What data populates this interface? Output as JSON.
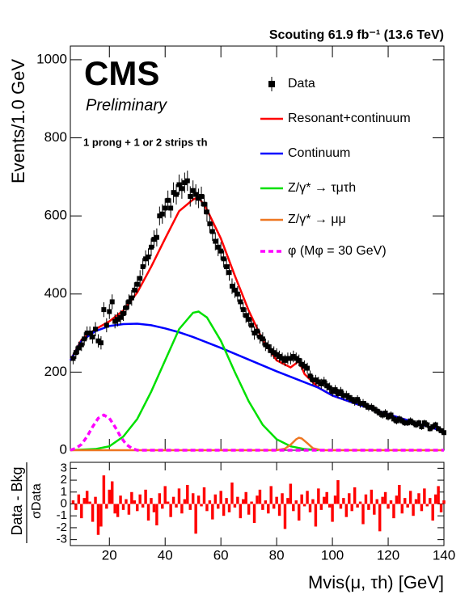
{
  "chart_data": {
    "type": "scatter",
    "header": "Scouting 61.9 fb⁻¹ (13.6 TeV)",
    "experiment": "CMS",
    "status": "Preliminary",
    "annotation": "1 prong + 1 or 2 strips τh",
    "xlabel": "Mvis(μ, τh) [GeV]",
    "ylabel": "Events/1.0 GeV",
    "xlim": [
      6,
      140
    ],
    "ylim": [
      0,
      1035
    ],
    "xticks": [
      20,
      40,
      60,
      80,
      100,
      120,
      140
    ],
    "yticks": [
      0,
      200,
      400,
      600,
      800,
      1000
    ],
    "series": [
      {
        "name": "Data",
        "style": "points",
        "color": "#000000",
        "x": [
          7,
          8,
          9,
          10,
          11,
          12,
          13,
          14,
          15,
          16,
          17,
          18,
          19,
          20,
          21,
          22,
          23,
          24,
          25,
          26,
          27,
          28,
          29,
          30,
          31,
          32,
          33,
          34,
          35,
          36,
          37,
          38,
          39,
          40,
          41,
          42,
          43,
          44,
          45,
          46,
          47,
          48,
          49,
          50,
          51,
          52,
          53,
          54,
          55,
          56,
          57,
          58,
          59,
          60,
          61,
          62,
          63,
          64,
          65,
          66,
          67,
          68,
          69,
          70,
          71,
          72,
          73,
          74,
          75,
          76,
          77,
          78,
          79,
          80,
          81,
          82,
          83,
          84,
          85,
          86,
          87,
          88,
          89,
          90,
          91,
          92,
          93,
          94,
          95,
          96,
          97,
          98,
          99,
          100,
          101,
          102,
          103,
          104,
          105,
          106,
          107,
          108,
          109,
          110,
          111,
          112,
          113,
          114,
          115,
          116,
          117,
          118,
          119,
          120,
          121,
          122,
          123,
          124,
          125,
          126,
          127,
          128,
          129,
          130,
          131,
          132,
          133,
          134,
          135,
          136,
          137,
          138,
          139,
          140
        ],
        "values": [
          235,
          250,
          262,
          270,
          285,
          300,
          300,
          290,
          310,
          280,
          275,
          360,
          320,
          355,
          380,
          330,
          335,
          340,
          350,
          365,
          380,
          390,
          410,
          425,
          440,
          470,
          490,
          495,
          520,
          540,
          545,
          600,
          605,
          620,
          640,
          620,
          660,
          655,
          680,
          670,
          685,
          690,
          650,
          665,
          655,
          645,
          650,
          630,
          610,
          580,
          560,
          535,
          520,
          510,
          490,
          470,
          455,
          420,
          410,
          400,
          380,
          360,
          345,
          335,
          320,
          300,
          305,
          290,
          285,
          270,
          265,
          255,
          250,
          245,
          240,
          235,
          230,
          235,
          235,
          240,
          235,
          230,
          220,
          215,
          210,
          190,
          180,
          180,
          175,
          170,
          175,
          165,
          160,
          150,
          155,
          145,
          150,
          140,
          140,
          135,
          130,
          125,
          130,
          120,
          120,
          115,
          110,
          110,
          105,
          100,
          95,
          90,
          95,
          85,
          90,
          80,
          75,
          80,
          75,
          70,
          70,
          75,
          70,
          65,
          70,
          60,
          70,
          65,
          55,
          60,
          65,
          55,
          50,
          45
        ],
        "errors": [
          15,
          16,
          16,
          16,
          17,
          17,
          17,
          17,
          18,
          17,
          17,
          19,
          18,
          19,
          19,
          18,
          18,
          18,
          19,
          19,
          19,
          20,
          20,
          21,
          21,
          22,
          22,
          22,
          23,
          23,
          23,
          24,
          25,
          25,
          25,
          25,
          26,
          26,
          26,
          26,
          26,
          26,
          26,
          26,
          26,
          25,
          25,
          25,
          25,
          24,
          24,
          23,
          23,
          23,
          22,
          22,
          21,
          20,
          20,
          20,
          19,
          19,
          19,
          18,
          18,
          17,
          17,
          17,
          17,
          16,
          16,
          16,
          16,
          16,
          15,
          15,
          15,
          15,
          15,
          15,
          15,
          15,
          15,
          15,
          14,
          14,
          13,
          13,
          13,
          13,
          13,
          13,
          13,
          12,
          12,
          12,
          12,
          12,
          12,
          12,
          11,
          11,
          11,
          11,
          11,
          11,
          10,
          10,
          10,
          10,
          10,
          9,
          10,
          9,
          9,
          9,
          9,
          9,
          9,
          8,
          8,
          9,
          8,
          8,
          8,
          8,
          8,
          8,
          7,
          8,
          8,
          7,
          7,
          7
        ]
      },
      {
        "name": "Resonant+continuum",
        "style": "line",
        "color": "#ff0000",
        "x": [
          6,
          10,
          15,
          20,
          25,
          30,
          35,
          40,
          45,
          50,
          52,
          55,
          60,
          65,
          70,
          75,
          80,
          85,
          88,
          90,
          95,
          100,
          110,
          120,
          130,
          140
        ],
        "values": [
          230,
          283,
          310,
          330,
          358,
          404,
          470,
          542,
          612,
          642,
          648,
          616,
          542,
          447,
          357,
          282,
          230,
          212,
          228,
          195,
          160,
          140,
          115,
          92,
          70,
          48
        ]
      },
      {
        "name": "Continuum",
        "style": "line",
        "color": "#0000ff",
        "x": [
          6,
          10,
          15,
          20,
          25,
          30,
          35,
          40,
          45,
          50,
          55,
          60,
          65,
          70,
          75,
          80,
          85,
          90,
          95,
          100,
          110,
          120,
          130,
          140
        ],
        "values": [
          230,
          280,
          305,
          318,
          323,
          324,
          320,
          312,
          302,
          290,
          276,
          262,
          247,
          232,
          217,
          202,
          188,
          174,
          160,
          140,
          115,
          92,
          70,
          48
        ]
      },
      {
        "name": "Z/γ* → τμτh",
        "style": "line",
        "color": "#00e000",
        "x": [
          6,
          15,
          20,
          25,
          30,
          35,
          40,
          45,
          50,
          52,
          55,
          60,
          65,
          70,
          75,
          80,
          85,
          90,
          95
        ],
        "values": [
          0,
          3,
          10,
          35,
          80,
          150,
          230,
          310,
          352,
          355,
          340,
          280,
          200,
          125,
          65,
          28,
          10,
          3,
          0
        ]
      },
      {
        "name": "Z/γ* → μμ",
        "style": "line",
        "color": "#ee7722",
        "x": [
          6,
          80,
          83,
          85,
          87,
          88,
          89,
          91,
          93,
          96,
          140
        ],
        "values": [
          0,
          0,
          4,
          14,
          28,
          32,
          30,
          18,
          5,
          0,
          0
        ]
      },
      {
        "name": "φ (Mφ = 30 GeV)",
        "style": "dashed",
        "color": "#ff00ff",
        "x": [
          6,
          8,
          10,
          12,
          14,
          16,
          18,
          20,
          22,
          24,
          26,
          28,
          30,
          140
        ],
        "values": [
          0,
          5,
          15,
          35,
          60,
          82,
          90,
          82,
          60,
          35,
          15,
          5,
          0,
          0
        ]
      }
    ],
    "ratio_panel": {
      "ylabel": [
        "Data - Bkg",
        "σData"
      ],
      "ylim": [
        -3.5,
        3.5
      ],
      "yticks": [
        -3,
        -2,
        -1,
        0,
        1,
        2,
        3
      ],
      "color": "#ff0000",
      "values": [
        0.3,
        -0.5,
        0.8,
        -1.2,
        0.5,
        1.1,
        0.2,
        -1.5,
        0.6,
        -2.6,
        -1.9,
        2.4,
        -0.4,
        1.2,
        1.9,
        -0.8,
        -1.1,
        0.7,
        -0.5,
        0.4,
        -0.9,
        1.0,
        0.3,
        -0.6,
        0.8,
        -0.3,
        1.2,
        -1.4,
        0.5,
        -0.7,
        -1.8,
        0.9,
        -0.4,
        1.5,
        0.2,
        -1.1,
        0.6,
        -0.3,
        1.3,
        -0.8,
        0.4,
        1.6,
        -0.5,
        0.9,
        -2.5,
        0.7,
        -0.2,
        1.4,
        -0.6,
        0.3,
        -1.3,
        0.8,
        -0.4,
        1.1,
        -1.0,
        0.5,
        -0.7,
        1.8,
        -0.3,
        0.6,
        -1.2,
        0.4,
        1.0,
        -0.9,
        0.2,
        -1.6,
        0.7,
        1.2,
        -0.5,
        0.3,
        -0.8,
        1.5,
        -0.4,
        0.6,
        -1.0,
        0.9,
        -2.1,
        0.5,
        1.7,
        -0.6,
        0.3,
        -1.4,
        0.8,
        -0.2,
        1.1,
        -0.7,
        0.4,
        -1.9,
        1.3,
        -0.5,
        0.6,
        1.0,
        -0.3,
        -1.5,
        0.7,
        2.0,
        -0.4,
        0.5,
        -1.1,
        0.9,
        -0.6,
        1.4,
        -0.3,
        0.2,
        -1.7,
        0.8,
        -0.5,
        1.2,
        -0.9,
        0.4,
        -2.3,
        0.6,
        1.0,
        -0.4,
        0.3,
        -1.2,
        0.7,
        1.6,
        -0.8,
        0.5,
        -0.3,
        1.1,
        -1.0,
        0.4,
        0.9,
        -0.6,
        1.3,
        -0.2,
        0.5,
        -1.4,
        0.8,
        1.5,
        -0.7,
        0.3
      ]
    }
  }
}
